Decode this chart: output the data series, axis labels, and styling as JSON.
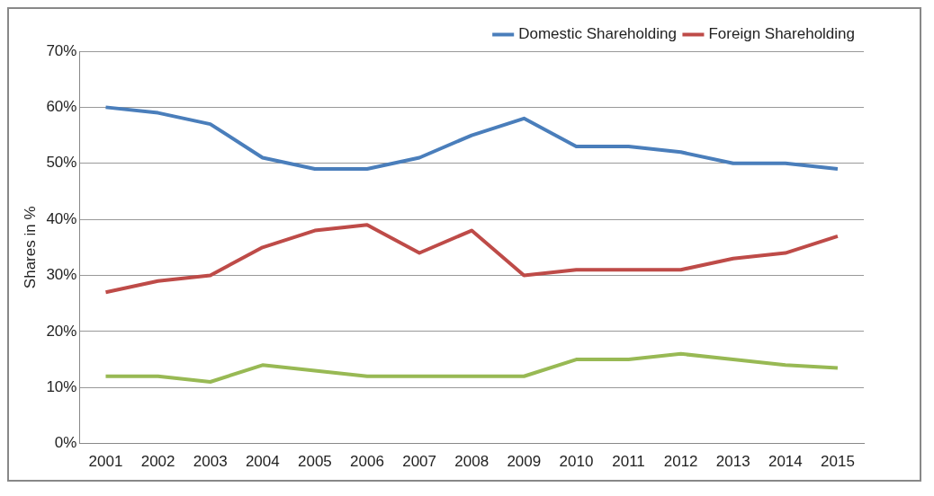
{
  "chart_data": {
    "type": "line",
    "ylabel": "Shares in %",
    "categories": [
      "2001",
      "2002",
      "2003",
      "2004",
      "2005",
      "2006",
      "2007",
      "2008",
      "2009",
      "2010",
      "2011",
      "2012",
      "2013",
      "2014",
      "2015"
    ],
    "series": [
      {
        "name": "Domestic Shareholding",
        "color": "#4a7ebb",
        "values": [
          60,
          59,
          57,
          51,
          49,
          49,
          51,
          55,
          58,
          53,
          53,
          52,
          50,
          50,
          49
        ]
      },
      {
        "name": "Foreign Shareholding",
        "color": "#be4b48",
        "values": [
          27,
          29,
          30,
          35,
          38,
          39,
          34,
          38,
          30,
          31,
          31,
          31,
          33,
          34,
          37
        ]
      },
      {
        "color": "#98b954",
        "values": [
          12,
          12,
          11,
          14,
          13,
          12,
          12,
          12,
          12,
          15,
          15,
          16,
          15,
          14,
          13.5
        ]
      }
    ],
    "ylim": [
      0,
      70
    ],
    "yticks": [
      {
        "value": 0,
        "label": "0%"
      },
      {
        "value": 10,
        "label": "10%"
      },
      {
        "value": 20,
        "label": "20%"
      },
      {
        "value": 30,
        "label": "30%"
      },
      {
        "value": 40,
        "label": "40%"
      },
      {
        "value": 50,
        "label": "50%"
      },
      {
        "value": 60,
        "label": "60%"
      },
      {
        "value": 70,
        "label": "70%"
      }
    ],
    "grid": "y",
    "legend": "top right",
    "marker": "none",
    "line_style": "solid"
  }
}
